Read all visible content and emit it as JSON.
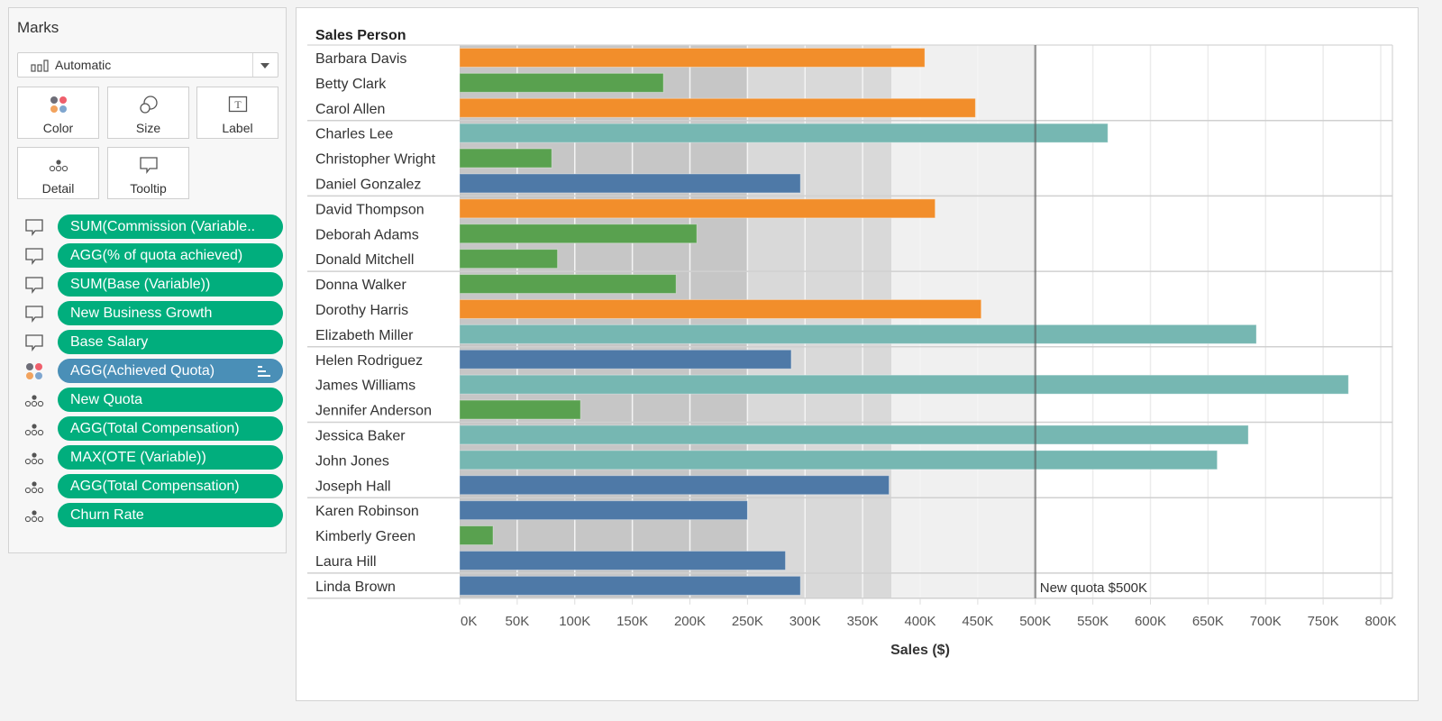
{
  "marks_card": {
    "title": "Marks",
    "mark_type": {
      "label": "Automatic",
      "icon": "bar-chart-icon"
    },
    "shelves": [
      {
        "label": "Color",
        "icon": "color-dots-icon"
      },
      {
        "label": "Size",
        "icon": "size-circles-icon"
      },
      {
        "label": "Label",
        "icon": "text-label-icon"
      },
      {
        "label": "Detail",
        "icon": "detail-dots-icon"
      },
      {
        "label": "Tooltip",
        "icon": "tooltip-speech-icon"
      }
    ],
    "fields": [
      {
        "label": "SUM(Commission (Variable..",
        "type": "tooltip",
        "color": "green"
      },
      {
        "label": "AGG(% of quota achieved)",
        "type": "tooltip",
        "color": "green"
      },
      {
        "label": "SUM(Base (Variable))",
        "type": "tooltip",
        "color": "green"
      },
      {
        "label": "New Business Growth",
        "type": "tooltip",
        "color": "green"
      },
      {
        "label": "Base Salary",
        "type": "tooltip",
        "color": "green"
      },
      {
        "label": "AGG(Achieved Quota)",
        "type": "color",
        "color": "blue",
        "sorted": true
      },
      {
        "label": "New Quota",
        "type": "detail",
        "color": "green"
      },
      {
        "label": "AGG(Total Compensation)",
        "type": "detail",
        "color": "green"
      },
      {
        "label": "MAX(OTE (Variable))",
        "type": "detail",
        "color": "green"
      },
      {
        "label": "AGG(Total Compensation)",
        "type": "detail",
        "color": "green"
      },
      {
        "label": "Churn Rate",
        "type": "detail",
        "color": "green"
      }
    ]
  },
  "colors": {
    "orange": "#f28e2b",
    "green": "#59a14f",
    "teal": "#76b7b2",
    "blue": "#4e79a7",
    "band_dark": "#c6c6c6",
    "band_mid": "#d9d9d9",
    "band_light": "#f0f0f0",
    "pill_green": "#01ae7d",
    "pill_blue": "#4a8fb7"
  },
  "chart_data": {
    "type": "bar",
    "orientation": "horizontal",
    "row_header": "Sales Person",
    "xlabel": "Sales ($)",
    "xlim": [
      0,
      800000
    ],
    "x_ticks": [
      0,
      50000,
      100000,
      150000,
      200000,
      250000,
      300000,
      350000,
      400000,
      450000,
      500000,
      550000,
      600000,
      650000,
      700000,
      750000,
      800000
    ],
    "x_tick_labels": [
      "0K",
      "50K",
      "100K",
      "150K",
      "200K",
      "250K",
      "300K",
      "350K",
      "400K",
      "450K",
      "500K",
      "550K",
      "600K",
      "650K",
      "700K",
      "750K",
      "800K"
    ],
    "grid": true,
    "reference_bands": [
      {
        "from": 0,
        "to": 250000,
        "color": "band_dark"
      },
      {
        "from": 250000,
        "to": 375000,
        "color": "band_mid"
      },
      {
        "from": 375000,
        "to": 500000,
        "color": "band_light"
      }
    ],
    "reference_line": {
      "value": 500000,
      "label": "New quota $500K"
    },
    "row_group_size": 3,
    "categories": [
      "Barbara Davis",
      "Betty Clark",
      "Carol Allen",
      "Charles Lee",
      "Christopher Wright",
      "Daniel Gonzalez",
      "David Thompson",
      "Deborah Adams",
      "Donald Mitchell",
      "Donna Walker",
      "Dorothy Harris",
      "Elizabeth Miller",
      "Helen Rodriguez",
      "James Williams",
      "Jennifer Anderson",
      "Jessica Baker",
      "John Jones",
      "Joseph Hall",
      "Karen Robinson",
      "Kimberly Green",
      "Laura Hill",
      "Linda Brown"
    ],
    "values": [
      404000,
      177000,
      448000,
      563000,
      80000,
      296000,
      413000,
      206000,
      85000,
      188000,
      453000,
      692000,
      288000,
      772000,
      105000,
      685000,
      658000,
      373000,
      250000,
      29000,
      283000,
      296000
    ],
    "color_groups": [
      "orange",
      "green",
      "orange",
      "teal",
      "green",
      "blue",
      "orange",
      "green",
      "green",
      "green",
      "orange",
      "teal",
      "blue",
      "teal",
      "green",
      "teal",
      "teal",
      "blue",
      "blue",
      "green",
      "blue",
      "blue"
    ]
  }
}
